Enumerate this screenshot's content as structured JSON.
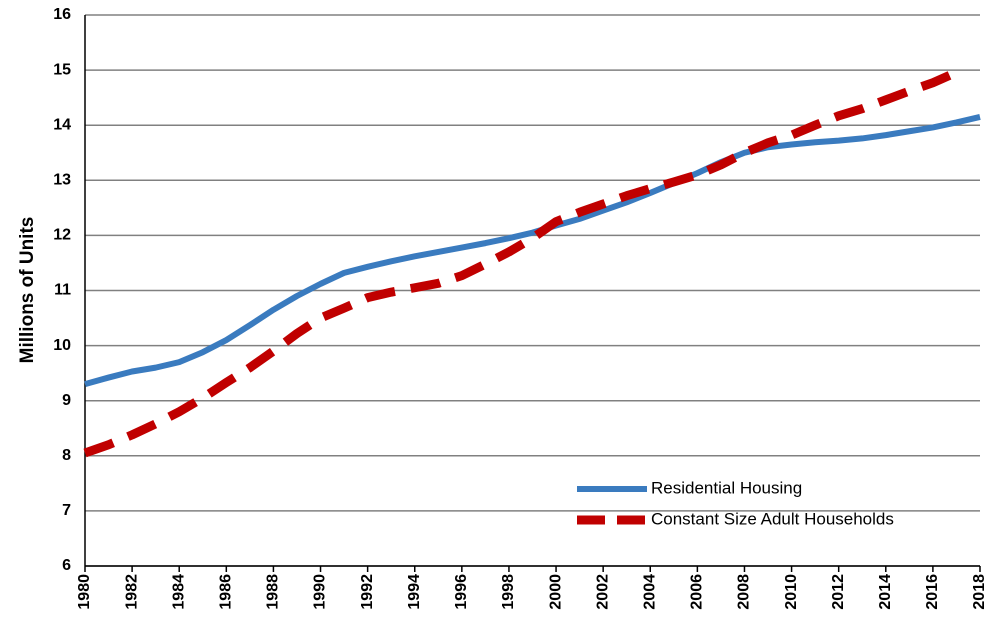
{
  "chart_data": {
    "type": "line",
    "y_label": "Millions of Units",
    "x": [
      1980,
      1981,
      1982,
      1983,
      1984,
      1985,
      1986,
      1987,
      1988,
      1989,
      1990,
      1991,
      1992,
      1993,
      1994,
      1995,
      1996,
      1997,
      1998,
      1999,
      2000,
      2001,
      2002,
      2003,
      2004,
      2005,
      2006,
      2007,
      2008,
      2009,
      2010,
      2011,
      2012,
      2013,
      2014,
      2015,
      2016,
      2017,
      2018
    ],
    "series": [
      {
        "name": "Residential Housing",
        "color": "#3a7bbf",
        "line_style": "solid",
        "values": [
          9.3,
          9.42,
          9.53,
          9.6,
          9.7,
          9.88,
          10.1,
          10.37,
          10.65,
          10.9,
          11.12,
          11.32,
          11.43,
          11.53,
          11.62,
          11.7,
          11.78,
          11.86,
          11.95,
          12.05,
          12.18,
          12.3,
          12.45,
          12.6,
          12.77,
          12.95,
          13.13,
          13.33,
          13.5,
          13.6,
          13.65,
          13.69,
          13.72,
          13.76,
          13.82,
          13.89,
          13.96,
          14.05,
          14.15
        ]
      },
      {
        "name": "Constant Size Adult Households",
        "color": "#c00000",
        "line_style": "dashed",
        "values": [
          8.05,
          8.2,
          8.38,
          8.58,
          8.8,
          9.05,
          9.33,
          9.6,
          9.9,
          10.22,
          10.5,
          10.68,
          10.87,
          10.97,
          11.05,
          11.13,
          11.27,
          11.48,
          11.7,
          11.95,
          12.25,
          12.42,
          12.57,
          12.72,
          12.85,
          12.97,
          13.1,
          13.28,
          13.5,
          13.68,
          13.82,
          14.0,
          14.17,
          14.3,
          14.46,
          14.62,
          14.77,
          14.96,
          null
        ]
      }
    ],
    "xlim": [
      1980,
      2018
    ],
    "xticks": [
      1980,
      1982,
      1984,
      1986,
      1988,
      1990,
      1992,
      1994,
      1996,
      1998,
      2000,
      2002,
      2004,
      2006,
      2008,
      2010,
      2012,
      2014,
      2016,
      2018
    ],
    "ylim": [
      6,
      16
    ],
    "yticks": [
      6,
      7,
      8,
      9,
      10,
      11,
      12,
      13,
      14,
      15,
      16
    ],
    "grid": true,
    "legend": "lower-right"
  }
}
